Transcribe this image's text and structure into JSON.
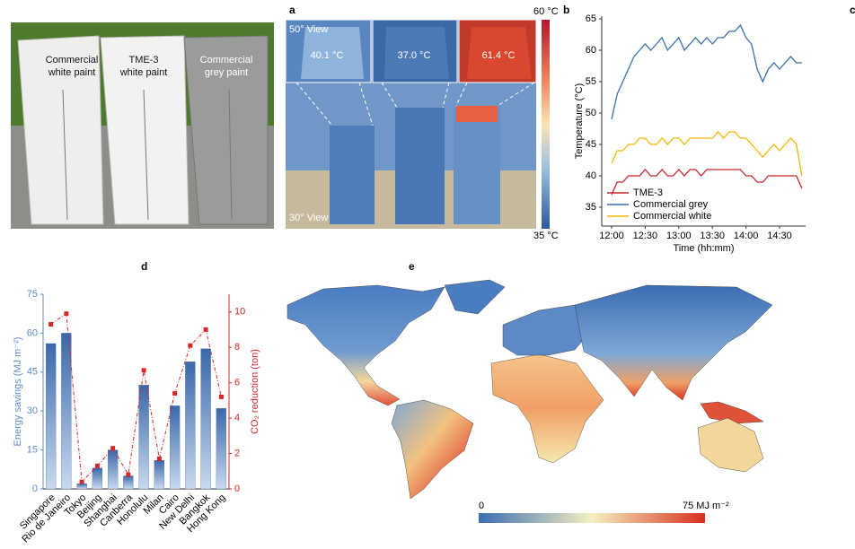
{
  "panel_labels": [
    "a",
    "b",
    "c",
    "d",
    "e"
  ],
  "photo": {
    "labels": [
      [
        "Commercial",
        "white paint"
      ],
      [
        "TME-3",
        "white paint"
      ],
      [
        "Commercial",
        "grey paint"
      ]
    ]
  },
  "thermal": {
    "top_view": "50° View",
    "bottom_view": "30° View",
    "temperatures": [
      "40.1 °C",
      "37.0 °C",
      "61.4 °C"
    ],
    "scale_max": "60 °C",
    "scale_min": "35 °C"
  },
  "map": {
    "scale_min": "0",
    "scale_max": "75 MJ m⁻²"
  },
  "chart_data": [
    {
      "type": "line",
      "xlabel": "Time (hh:mm)",
      "ylabel": "Temperature (°C)",
      "categories": [
        "12:00",
        null,
        null,
        null,
        null,
        null,
        "12:30",
        null,
        null,
        null,
        null,
        null,
        "13:00",
        null,
        null,
        null,
        null,
        null,
        "13:30",
        null,
        null,
        null,
        null,
        null,
        "14:00",
        null,
        null,
        null,
        null,
        null,
        "14:30",
        null,
        null,
        null,
        null
      ],
      "ylim": [
        32,
        65
      ],
      "yticks": [
        35,
        40,
        45,
        50,
        55,
        60,
        65
      ],
      "legend": "lower left",
      "series": [
        {
          "name": "TME-3",
          "color": "#c8252b",
          "values": [
            37,
            39,
            39,
            40,
            40,
            40,
            41,
            40,
            40,
            41,
            40,
            40,
            41,
            40,
            41,
            41,
            40,
            41,
            41,
            41,
            41,
            41,
            41,
            41,
            40,
            40,
            39,
            39,
            40,
            40,
            40,
            40,
            40,
            40,
            38
          ]
        },
        {
          "name": "Commercial grey",
          "color": "#3a6fb0",
          "values": [
            49,
            53,
            55,
            57,
            59,
            60,
            61,
            60,
            61,
            62,
            60,
            61,
            62,
            60,
            61,
            62,
            61,
            62,
            61,
            62,
            62,
            63,
            63,
            64,
            62,
            61,
            57,
            55,
            57,
            58,
            57,
            58,
            59,
            58,
            58
          ]
        },
        {
          "name": "Commercial white",
          "color": "#f2b705",
          "values": [
            42,
            44,
            44,
            45,
            45,
            46,
            46,
            45,
            45,
            46,
            45,
            46,
            46,
            45,
            46,
            46,
            46,
            46,
            46,
            47,
            46,
            47,
            47,
            46,
            46,
            45,
            44,
            43,
            44,
            45,
            44,
            45,
            46,
            45,
            40
          ]
        }
      ]
    },
    {
      "type": "bar",
      "ylabel": "Energy savings (MJ m⁻²)",
      "y2label": "CO₂ reduction (ton)",
      "categories": [
        "Singapore",
        "Rio de Janeiro",
        "Tokyo",
        "Beijing",
        "Shanghai",
        "Canberra",
        "Honolulu",
        "Milan",
        "Cairo",
        "New Delhi",
        "Bangkok",
        "Hong Kong"
      ],
      "ylim": [
        0,
        75
      ],
      "yticks": [
        0,
        15,
        30,
        45,
        60,
        75
      ],
      "y2lim": [
        0,
        11
      ],
      "y2ticks": [
        0,
        2,
        4,
        6,
        8,
        10
      ],
      "series": [
        {
          "type": "bar",
          "color": "#3f6fae",
          "values": [
            56,
            60,
            2,
            8,
            15,
            5,
            40,
            11,
            32,
            49,
            54,
            31
          ]
        },
        {
          "type": "line",
          "axis": "y2",
          "color": "#d62728",
          "values": [
            9.3,
            9.9,
            0.4,
            1.3,
            2.3,
            0.8,
            6.7,
            1.7,
            5.4,
            8.1,
            9.0,
            5.2
          ]
        }
      ]
    }
  ]
}
